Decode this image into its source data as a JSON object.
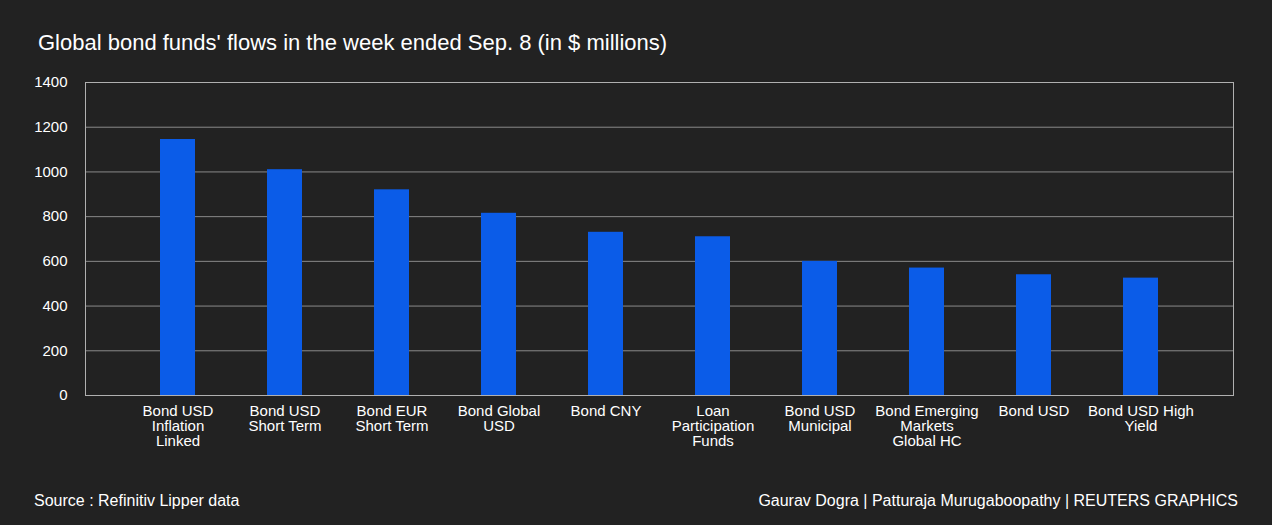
{
  "chart_data": {
    "type": "bar",
    "title": "Global bond funds' flows in the week ended Sep. 8 (in $ millions)",
    "categories": [
      "Bond USD Inflation Linked",
      "Bond USD Short Term",
      "Bond EUR Short Term",
      "Bond Global USD",
      "Bond CNY",
      "Loan Participation Funds",
      "Bond USD Municipal",
      "Bond Emerging Markets Global HC",
      "Bond USD",
      "Bond USD High Yield"
    ],
    "values": [
      1145,
      1010,
      920,
      815,
      730,
      710,
      600,
      570,
      540,
      525
    ],
    "color": "#0b5ce8",
    "ylim": [
      0,
      1400
    ],
    "yticks": [
      0,
      200,
      400,
      600,
      800,
      1000,
      1200,
      1400
    ],
    "grid": true,
    "source": "Source : Refinitiv Lipper data",
    "credit": "Gaurav Dogra | Patturaja Murugaboopathy | REUTERS GRAPHICS"
  }
}
